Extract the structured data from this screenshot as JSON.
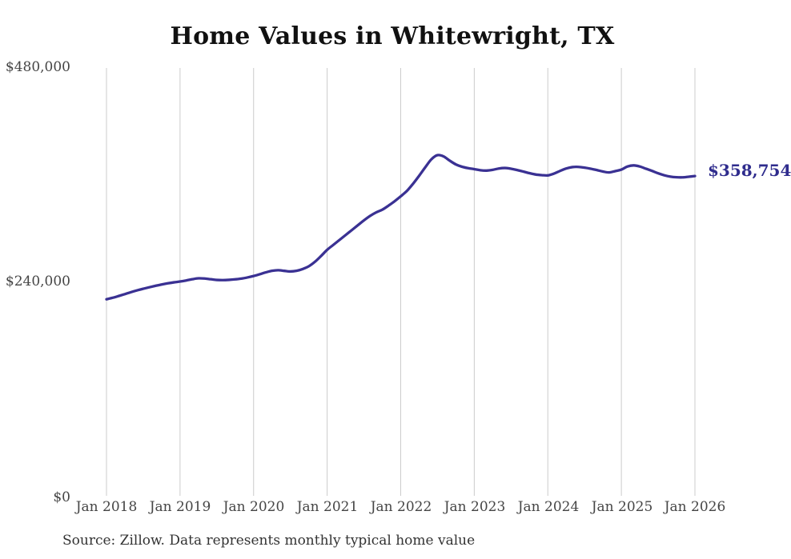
{
  "chart": {
    "title": "Home Values in Whitewright, TX",
    "end_label": "$358,754",
    "source_note": "Source: Zillow. Data represents monthly typical home value"
  },
  "chart_data": {
    "type": "line",
    "title": "Home Values in Whitewright, TX",
    "xlabel": "",
    "ylabel": "",
    "ylim": [
      0,
      480000
    ],
    "grid": "vertical-only",
    "legend": "none",
    "line_color": "#3a3193",
    "gridline_color": "#cccccc",
    "annotation_color": "#2f2c8d",
    "end_value": 358754,
    "y_tick_labels": [
      "$480,000",
      "$240,000",
      "$0"
    ],
    "x_tick_labels": [
      "Jan 2018",
      "Jan 2019",
      "Jan 2020",
      "Jan 2021",
      "Jan 2022",
      "Jan 2023",
      "Jan 2024",
      "Jan 2025",
      "Jan 2026"
    ],
    "series": [
      {
        "name": "Monthly typical home value",
        "x_start": "Jan 2018",
        "x_end": "Jan 2026",
        "x_step_months": 1,
        "values": [
          220500,
          222200,
          224200,
          226300,
          228500,
          230500,
          232300,
          234000,
          235600,
          237100,
          238400,
          239500,
          240400,
          241600,
          243000,
          244000,
          243800,
          243000,
          242200,
          242000,
          242300,
          242900,
          243700,
          245000,
          246600,
          248600,
          250700,
          252400,
          253100,
          252400,
          251700,
          252400,
          254400,
          257500,
          262500,
          269000,
          276000,
          281500,
          287000,
          292500,
          298000,
          303500,
          309000,
          314000,
          318000,
          321000,
          325500,
          330500,
          336000,
          342000,
          350000,
          359000,
          368500,
          377500,
          382200,
          380800,
          376000,
          371800,
          369200,
          367600,
          366500,
          365300,
          364900,
          365700,
          367200,
          367800,
          367000,
          365500,
          363800,
          362000,
          360500,
          359800,
          359500,
          361500,
          364500,
          367200,
          368800,
          369000,
          368200,
          367000,
          365500,
          363800,
          362800,
          364300,
          366000,
          369500,
          370700,
          369500,
          367000,
          364500,
          361800,
          359600,
          358100,
          357400,
          357300,
          358000,
          358754
        ]
      }
    ]
  }
}
